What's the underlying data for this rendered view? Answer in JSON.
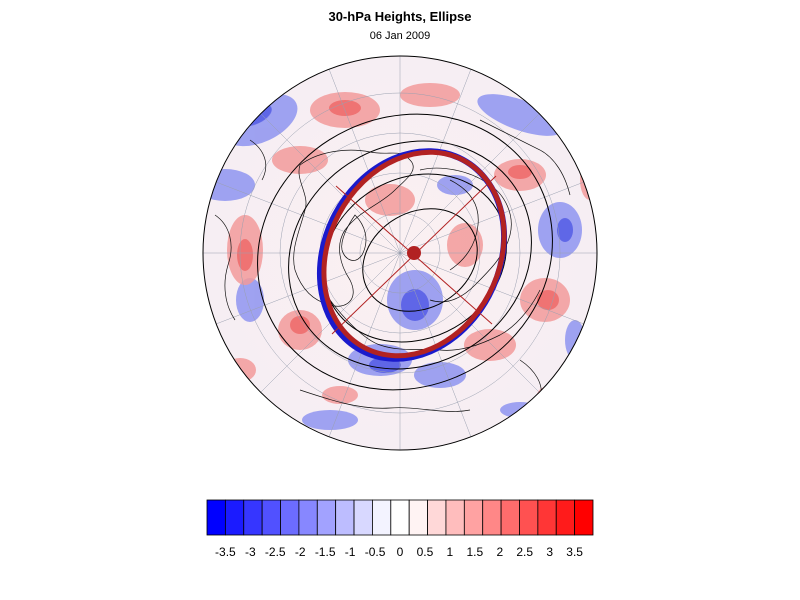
{
  "title": "30-hPa Heights, Ellipse",
  "subtitle": "06 Jan 2009",
  "map": {
    "projection": "polar stereographic (north pole)",
    "field": "30-hPa height anomaly",
    "overlay": "fitted vortex ellipse (red/blue outline) with centroid and axes",
    "colors": {
      "ellipse_outer": "#b22222",
      "ellipse_inner": "#1a1acc",
      "centroid": "#b22222",
      "coastline": "#000000",
      "contour": "#000000"
    }
  },
  "colorbar": {
    "ticks": [
      "-3.5",
      "-3",
      "-2.5",
      "-2",
      "-1.5",
      "-1",
      "-0.5",
      "0",
      "0.5",
      "1",
      "1.5",
      "2",
      "2.5",
      "3",
      "3.5"
    ],
    "colors": [
      "#0000ff",
      "#1b1bff",
      "#3636ff",
      "#5151ff",
      "#6c6cff",
      "#8787ff",
      "#a2a2ff",
      "#bdbdff",
      "#d8d8ff",
      "#f3f3ff",
      "#ffffff",
      "#fff3f3",
      "#ffd8d8",
      "#ffbdbd",
      "#ffa2a2",
      "#ff8787",
      "#ff6c6c",
      "#ff5151",
      "#ff3636",
      "#ff1b1b",
      "#ff0000"
    ]
  }
}
